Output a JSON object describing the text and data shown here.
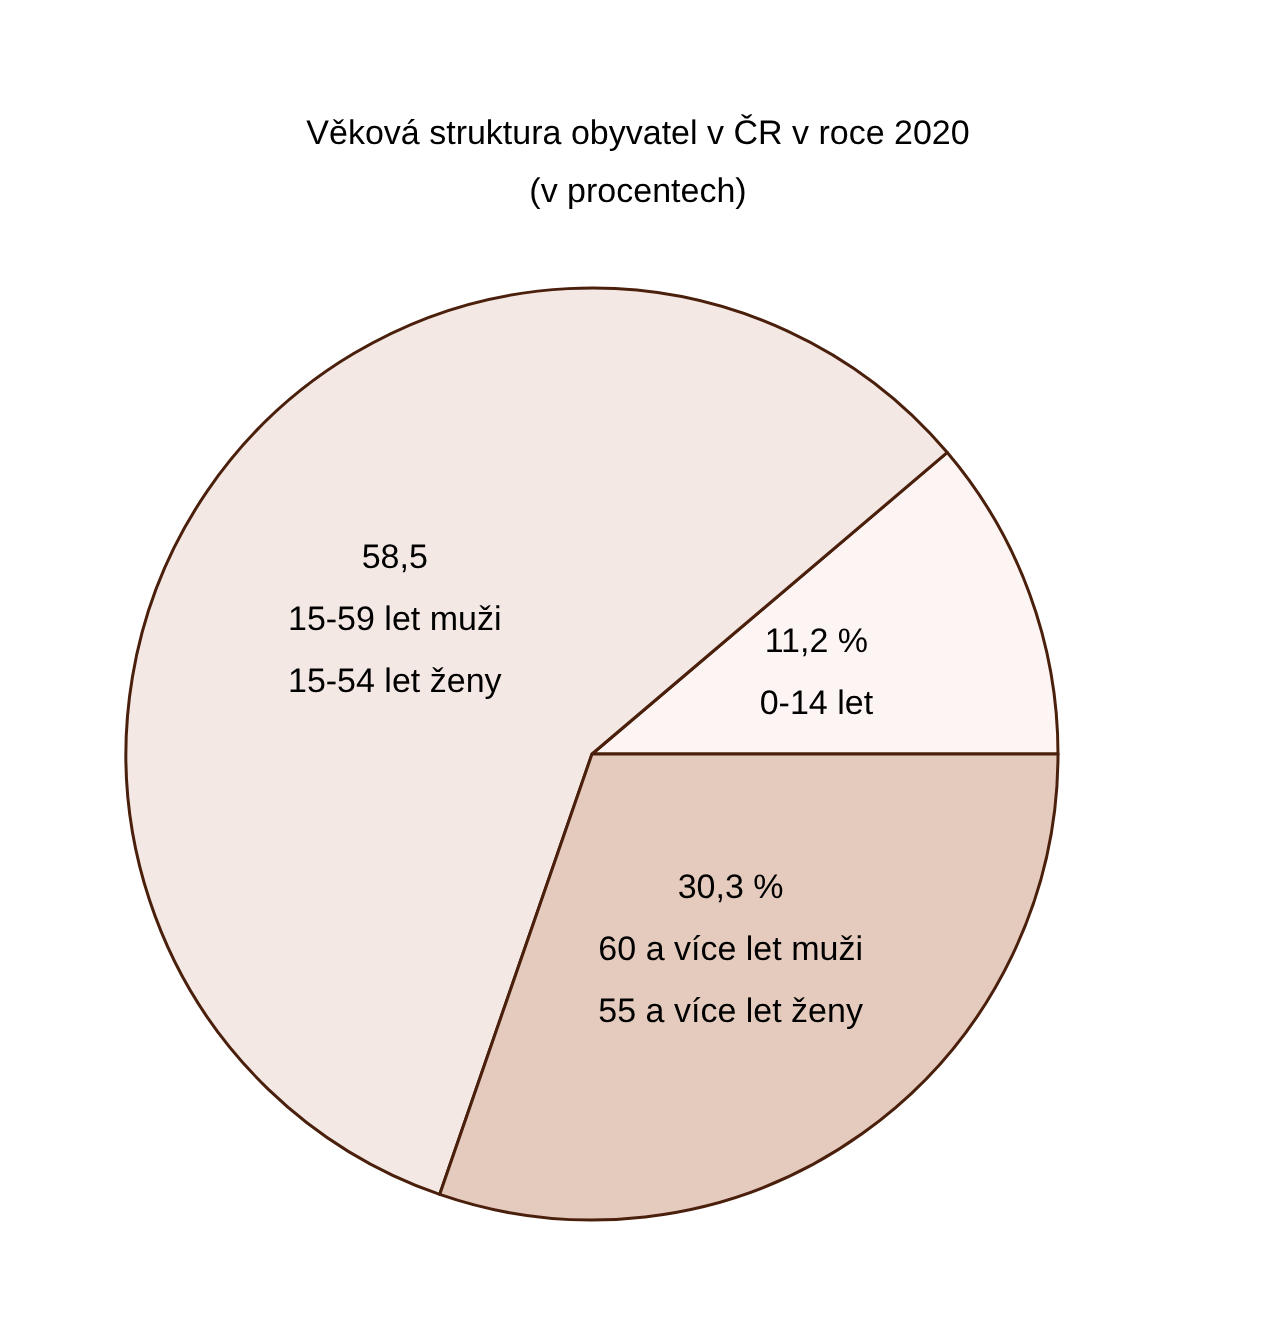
{
  "chart_data": {
    "type": "pie",
    "title": "Věková struktura obyvatel v ČR v roce 2020",
    "subtitle": "(v procentech)",
    "categories": [
      "0-14 let",
      "15-59 let muži\n15-54 let ženy",
      "60 a více let muži\n55 a více let ženy"
    ],
    "values": [
      11.2,
      58.5,
      30.3
    ],
    "colors": [
      "#fdf5f4",
      "#f4e8e4",
      "#e4cbbe"
    ],
    "value_labels": [
      "11,2 %",
      "58,5",
      "30,3 %"
    ]
  }
}
